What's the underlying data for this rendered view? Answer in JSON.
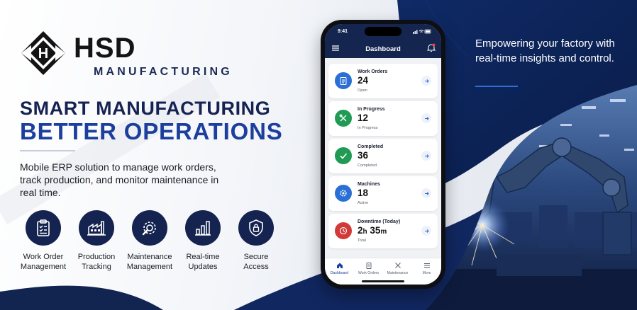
{
  "brand": {
    "name": "HSD",
    "subtitle": "MANUFACTURING"
  },
  "headline": {
    "line1": "SMART MANUFACTURING",
    "line2": "BETTER OPERATIONS"
  },
  "description": "Mobile ERP solution to manage work orders, track production, and monitor maintenance in real time.",
  "features": [
    {
      "line1": "Work Order",
      "line2": "Management",
      "icon": "clipboard-checklist-icon"
    },
    {
      "line1": "Production",
      "line2": "Tracking",
      "icon": "factory-icon"
    },
    {
      "line1": "Maintenance",
      "line2": "Management",
      "icon": "wrench-gear-icon"
    },
    {
      "line1": "Real-time",
      "line2": "Updates",
      "icon": "bar-chart-icon"
    },
    {
      "line1": "Secure",
      "line2": "Access",
      "icon": "shield-lock-icon"
    }
  ],
  "tagline": "Empowering your factory with real-time insights and control.",
  "phone": {
    "status_time": "9:41",
    "app_title": "Dashboard",
    "cards": [
      {
        "label": "Work Orders",
        "value": "24",
        "sub": "Open",
        "color": "#2a6fd6",
        "icon": "clipboard-icon"
      },
      {
        "label": "In Progress",
        "value": "12",
        "sub": "In Progress",
        "color": "#1f9b54",
        "icon": "tools-icon"
      },
      {
        "label": "Completed",
        "value": "36",
        "sub": "Completed",
        "color": "#1f9b54",
        "icon": "check-icon"
      },
      {
        "label": "Machines",
        "value": "18",
        "sub": "Active",
        "color": "#2a6fd6",
        "icon": "gear-icon"
      },
      {
        "label": "Downtime (Today)",
        "value_h": "2",
        "unit_h": "h",
        "value_m": "35",
        "unit_m": "m",
        "sub": "Total",
        "color": "#d23a3a",
        "icon": "clock-icon"
      }
    ],
    "tabs": [
      {
        "label": "Dashboard",
        "active": true,
        "icon": "home-icon"
      },
      {
        "label": "Work Orders",
        "active": false,
        "icon": "clipboard-icon"
      },
      {
        "label": "Maintenance",
        "active": false,
        "icon": "tools-icon"
      },
      {
        "label": "More",
        "active": false,
        "icon": "menu-icon"
      }
    ]
  },
  "colors": {
    "navy": "#14234f",
    "accent_blue": "#1c3f9e",
    "link_blue": "#2f6fd8"
  }
}
